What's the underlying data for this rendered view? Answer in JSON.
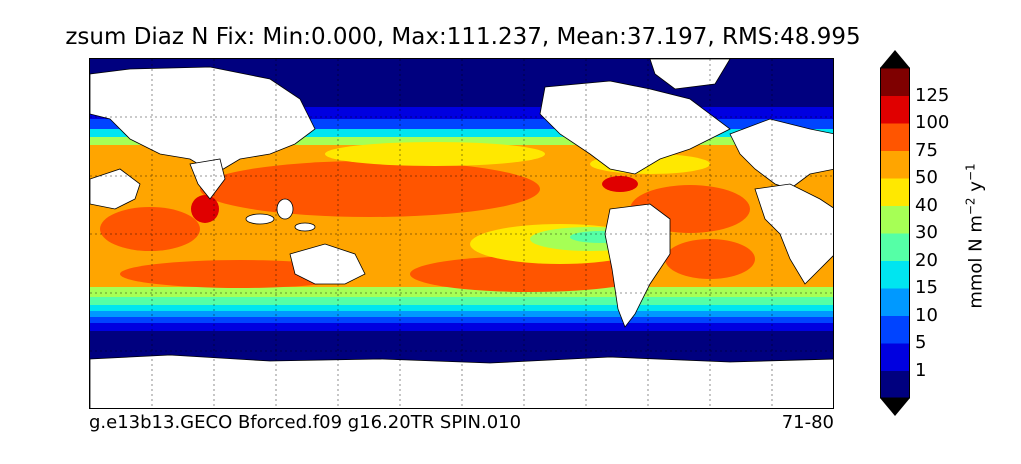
{
  "title": "zsum Diaz N Fix: Min:0.000, Max:111.237, Mean:37.197, RMS:48.995",
  "footer": {
    "case": "g.e13b13.GECO Bforced.f09 g16.20TR SPIN.010",
    "years": "71-80"
  },
  "colorbar": {
    "label_main": "mmol N m",
    "label_exp1": "−2",
    "label_mid": " y",
    "label_exp2": "−1",
    "ticks": [
      "1",
      "5",
      "10",
      "15",
      "20",
      "30",
      "40",
      "50",
      "75",
      "100",
      "125"
    ],
    "colors": [
      "#00007f",
      "#0000e0",
      "#0044ff",
      "#0099ff",
      "#00e5f0",
      "#55ffa6",
      "#a6ff55",
      "#ffe800",
      "#ffa500",
      "#ff5500",
      "#e00000",
      "#7f0000"
    ],
    "under_color": "#00007f",
    "over_color": "#000000"
  },
  "map": {
    "land_color": "#ffffff",
    "ocean_low_color": "#00007f",
    "gridlines": "dotted"
  }
}
